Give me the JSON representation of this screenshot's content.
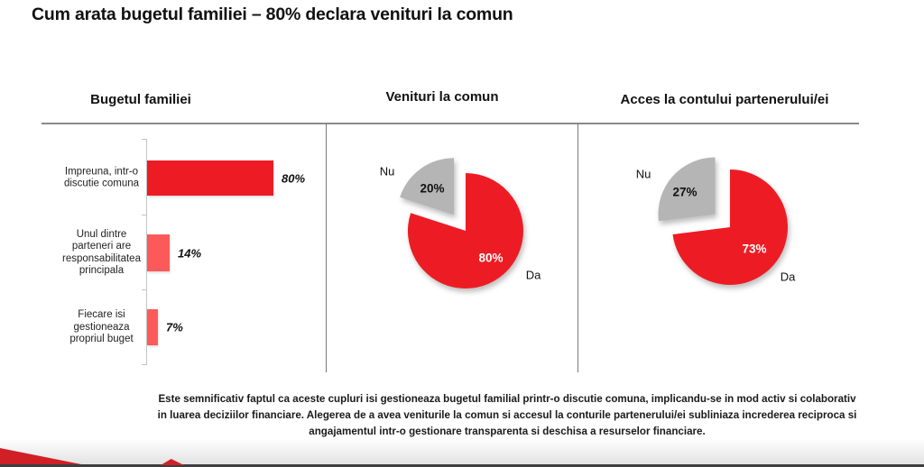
{
  "title": "Cum arata bugetul familiei – 80% declara venituri la comun",
  "sections": [
    {
      "label": "Bugetul familiei"
    },
    {
      "label": "Venituri la comun"
    },
    {
      "label": "Acces la contului partenerului/ei"
    }
  ],
  "chart_data": [
    {
      "type": "bar",
      "orientation": "horizontal",
      "title": "Bugetul familiei",
      "categories": [
        "Impreuna, intr-o discutie comuna",
        "Unul dintre parteneri are responsabilitatea principala",
        "Fiecare isi gestioneaza propriul buget"
      ],
      "category_lines": [
        [
          "Impreuna, intr-o",
          "discutie comuna"
        ],
        [
          "Unul dintre",
          "parteneri are",
          "responsabilitatea",
          "principala"
        ],
        [
          "Fiecare isi",
          "gestioneaza",
          "propriul buget"
        ]
      ],
      "values": [
        80,
        14,
        7
      ],
      "value_labels": [
        "80%",
        "14%",
        "7%"
      ],
      "bar_colors": [
        "#ED1C24",
        "#FC5A5A",
        "#FC5A5A"
      ],
      "xlim": [
        0,
        100
      ],
      "grid": false,
      "legend": false
    },
    {
      "type": "pie",
      "title": "Venituri la comun",
      "labels": [
        "Da",
        "Nu"
      ],
      "values": [
        80,
        20
      ],
      "value_labels": [
        "80%",
        "20%"
      ],
      "colors": [
        "#ED1C24",
        "#B5B5B5"
      ],
      "exploded_slice": "Nu",
      "start_angle": "12 o'clock, clockwise"
    },
    {
      "type": "pie",
      "title": "Acces la contului partenerului/ei",
      "labels": [
        "Da",
        "Nu"
      ],
      "values": [
        73,
        27
      ],
      "value_labels": [
        "73%",
        "27%"
      ],
      "colors": [
        "#ED1C24",
        "#B5B5B5"
      ],
      "exploded_slice": "Nu",
      "start_angle": "12 o'clock, clockwise"
    }
  ],
  "footer": {
    "lines": [
      "Este semnificativ faptul ca aceste cupluri isi gestioneaza bugetul familial printr-o discutie comuna, implicandu-se in mod activ si colaborativ",
      "in luarea deciziilor financiare. Alegerea de a avea veniturile la comun si accesul la conturile partenerului/ei subliniaza increderea reciproca si",
      "angajamentul intr-o gestionare transparenta si deschisa a resurselor financiare."
    ]
  },
  "colors": {
    "primary_red": "#ED1C24",
    "light_red": "#FC5A5A",
    "slice_gray": "#B5B5B5",
    "divider_gray": "#8a8a8a",
    "bottom_bar": "#3F3F3F",
    "decor_red": "#D11F26"
  }
}
